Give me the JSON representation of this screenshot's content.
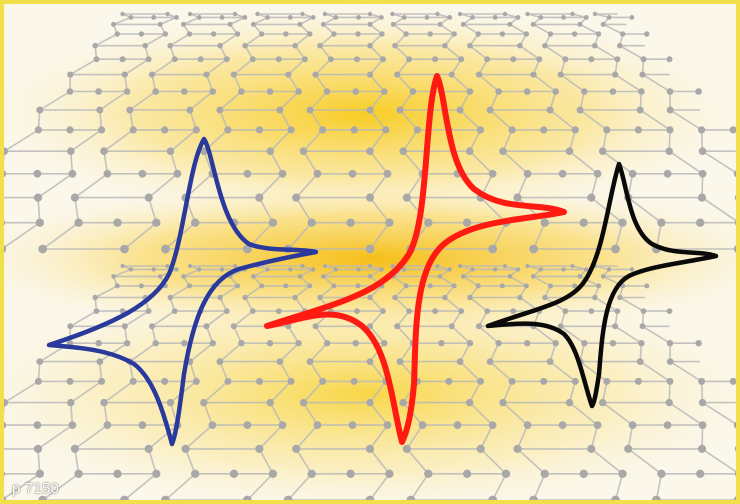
{
  "caption": {
    "page_label": "p 7150"
  },
  "colors": {
    "frame": "#f2e04a",
    "glow": "#f5c400",
    "lattice": "#b9b9b9",
    "curve_left": "#2a3a9c",
    "curve_middle": "#ff1a12",
    "curve_right": "#0a0a0a"
  },
  "illustration": {
    "background": "graphene-sheets",
    "curves": [
      "curve-left-blue",
      "curve-middle-red",
      "curve-right-black"
    ]
  }
}
